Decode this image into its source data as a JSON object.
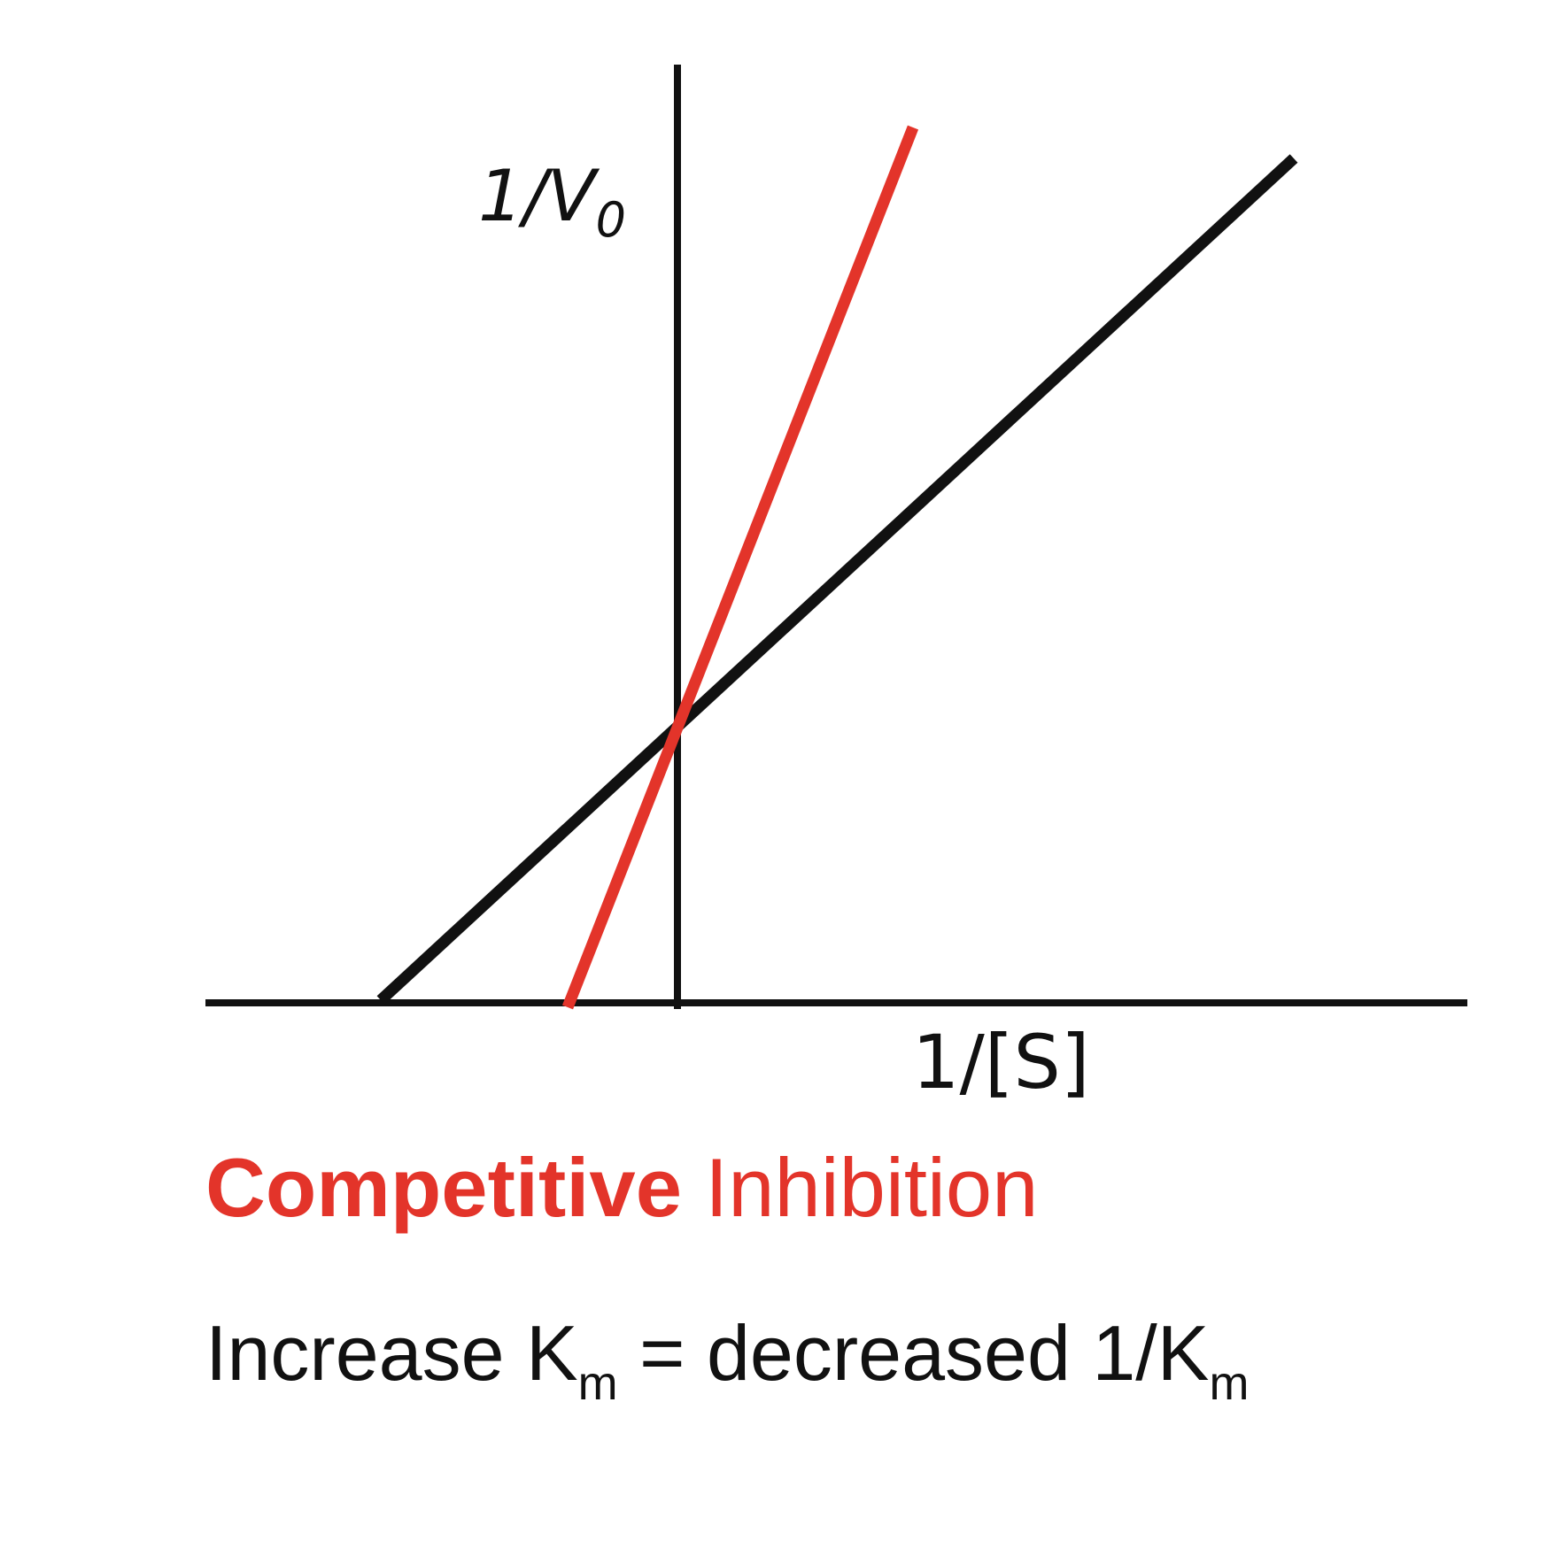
{
  "diagram": {
    "y_axis_label": "1/V",
    "y_axis_label_sub": "0",
    "x_axis_label": "1/[S]",
    "title_bold": "Competitive",
    "title_regular": "Inhibition",
    "caption": {
      "part1": "Increase K",
      "sub1": "m",
      "part2": " = decreased 1/K",
      "sub2": "m"
    },
    "colors": {
      "uninhibited": "#111111",
      "inhibited": "#e3342a",
      "axis": "#111111",
      "title": "#e3342a"
    }
  }
}
